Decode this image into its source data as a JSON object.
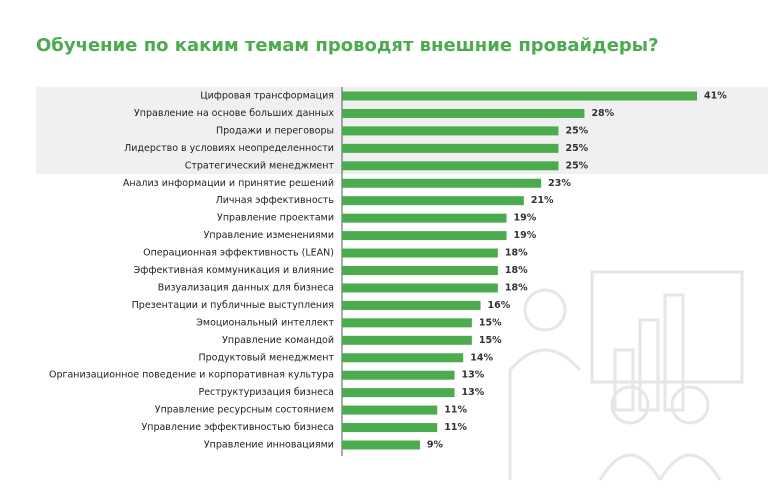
{
  "chart_data": {
    "type": "hbar",
    "title": "Обучение по каким темам проводят внешние провайдеры?",
    "categories": [
      "Цифровая трансформация",
      "Управление на основе больших данных",
      "Продажи и переговоры",
      "Лидерство в условиях неопределенности",
      "Стратегический менеджмент",
      "Анализ информации и принятие решений",
      "Личная эффективность",
      "Управление проектами",
      "Управление изменениями",
      "Операционная эффективность (LEAN)",
      "Эффективная коммуникация и влияние",
      "Визуализация данных для бизнеса",
      "Презентации и публичные выступления",
      "Эмоциональный интеллект",
      "Управление командой",
      "Продуктовый менеджмент",
      "Организационное поведение и корпоративная культура",
      "Реструктуризация бизнеса",
      "Управление ресурсным состоянием",
      "Управление эффективностью бизнеса",
      "Управление инновациями"
    ],
    "values": [
      41,
      28,
      25,
      25,
      25,
      23,
      21,
      19,
      19,
      18,
      18,
      18,
      16,
      15,
      15,
      14,
      13,
      13,
      11,
      11,
      9
    ],
    "value_labels": [
      "41%",
      "28%",
      "25%",
      "25%",
      "25%",
      "23%",
      "21%",
      "19%",
      "19%",
      "18%",
      "18%",
      "18%",
      "16%",
      "15%",
      "15%",
      "14%",
      "13%",
      "13%",
      "11%",
      "11%",
      "9%"
    ],
    "color": "#4caa4f"
  }
}
